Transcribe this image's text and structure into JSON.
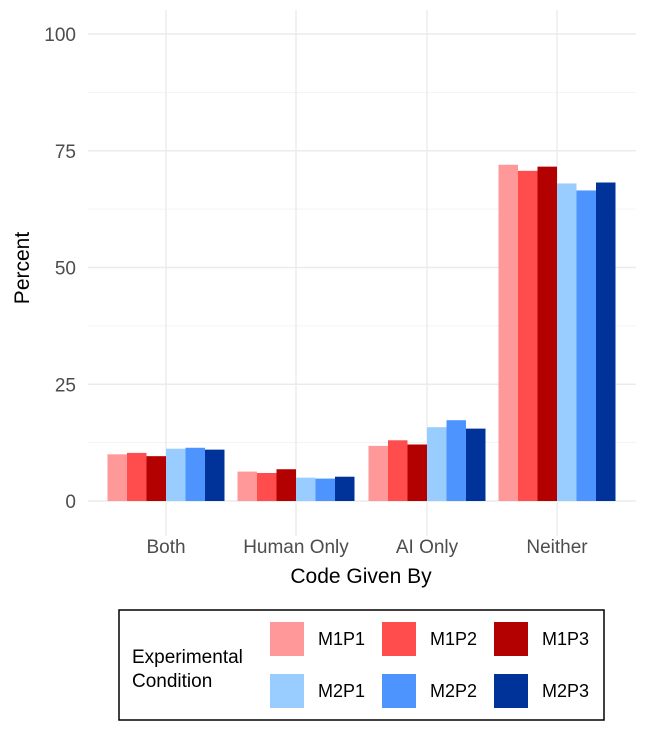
{
  "chart_data": {
    "type": "bar",
    "xlabel": "Code Given By",
    "ylabel": "Percent",
    "ylim": [
      0,
      100
    ],
    "yticks": [
      0,
      25,
      50,
      75,
      100
    ],
    "grid": true,
    "legend_position": "bottom",
    "legend_title": [
      "Experimental",
      "Condition"
    ],
    "categories": [
      "Both",
      "Human Only",
      "AI Only",
      "Neither"
    ],
    "series": [
      {
        "name": "M1P1",
        "color": "#ff9999",
        "values": [
          10.0,
          6.3,
          11.8,
          72.0
        ]
      },
      {
        "name": "M1P2",
        "color": "#ff4d4d",
        "values": [
          10.3,
          6.0,
          13.0,
          70.7
        ]
      },
      {
        "name": "M1P3",
        "color": "#b30000",
        "values": [
          9.6,
          6.8,
          12.1,
          71.6
        ]
      },
      {
        "name": "M2P1",
        "color": "#99ccff",
        "values": [
          11.2,
          5.0,
          15.8,
          68.0
        ]
      },
      {
        "name": "M2P2",
        "color": "#4d94ff",
        "values": [
          11.4,
          4.8,
          17.3,
          66.5
        ]
      },
      {
        "name": "M2P3",
        "color": "#003399",
        "values": [
          11.0,
          5.2,
          15.5,
          68.2
        ]
      }
    ]
  }
}
